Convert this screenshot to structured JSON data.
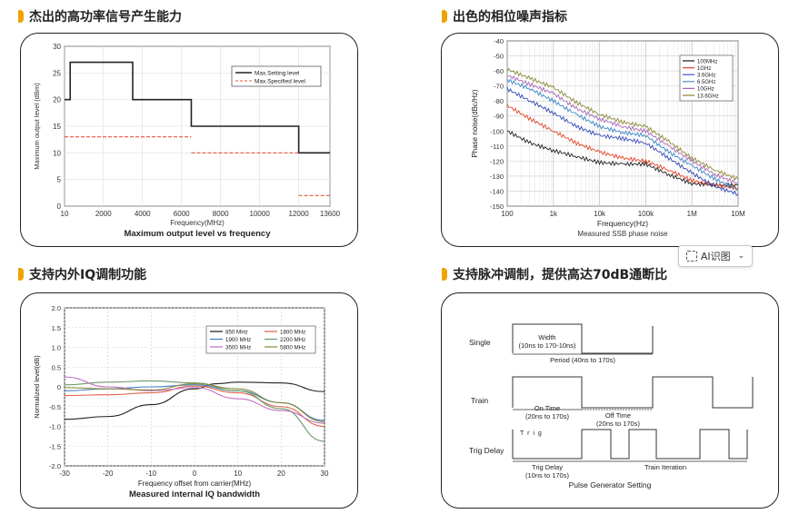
{
  "sections": [
    {
      "title": "杰出的高功率信号产生能力"
    },
    {
      "title": "出色的相位噪声指标"
    },
    {
      "title": "支持内外IQ调制功能"
    },
    {
      "title": "支持脉冲调制，提供高达70dB通断比"
    }
  ],
  "ai_button": {
    "label": "AI识图",
    "icon": "ai-scan-icon",
    "chevron": "chevron-down-icon"
  },
  "colors": {
    "accent": "#f0a300",
    "black_line": "#222222",
    "red_dashed": "#e8553a"
  },
  "chart_data": [
    {
      "type": "line",
      "title": "Maximum output level vs frequency",
      "xlabel": "Frequency(MHz)",
      "ylabel": "Maximum output level (dBm)",
      "xlim": [
        10,
        13600
      ],
      "ylim": [
        0,
        30
      ],
      "xticks": [
        "10",
        "2000",
        "4000",
        "6000",
        "8000",
        "10000",
        "12000",
        "13600"
      ],
      "yticks": [
        "0",
        "5",
        "10",
        "15",
        "20",
        "25",
        "30"
      ],
      "legend": {
        "position": "top-right",
        "entries": [
          "Max.Setting level",
          "Max.Specified level"
        ]
      },
      "series": [
        {
          "name": "Max.Setting level",
          "style": "solid",
          "color": "#222222",
          "x": [
            10,
            10,
            300,
            300,
            3500,
            3500,
            6500,
            6500,
            12000,
            12000,
            13600
          ],
          "y": [
            20,
            20,
            20,
            27,
            27,
            20,
            20,
            15,
            15,
            10,
            10
          ]
        },
        {
          "name": "Max.Specified level",
          "style": "dashed",
          "color": "#e8553a",
          "segments": [
            {
              "x": [
                10,
                6500
              ],
              "y": [
                13,
                13
              ]
            },
            {
              "x": [
                6500,
                12000
              ],
              "y": [
                10,
                10
              ]
            },
            {
              "x": [
                12000,
                13600
              ],
              "y": [
                2,
                2
              ]
            }
          ]
        }
      ]
    },
    {
      "type": "line",
      "title": "Measured SSB phase noise",
      "xlabel": "Frequency(Hz)",
      "ylabel": "Phase noise(dBc/Hz)",
      "xscale": "log",
      "xticks": [
        "100",
        "1k",
        "10k",
        "100k",
        "1M",
        "10M"
      ],
      "yticks": [
        "-40",
        "-50",
        "-60",
        "-70",
        "-80",
        "-90",
        "-100",
        "-110",
        "-120",
        "-130",
        "-140",
        "-150"
      ],
      "ylim": [
        -150,
        -40
      ],
      "legend": {
        "position": "top-right",
        "entries": [
          "100MHz",
          "1GHz",
          "3.6GHz",
          "6.5GHz",
          "10GHz",
          "13.6GHz"
        ]
      },
      "series": [
        {
          "name": "100MHz",
          "color": "#222222",
          "logx": [
            2,
            2.5,
            3,
            3.5,
            4,
            4.5,
            5,
            5.5,
            6,
            6.5,
            7
          ],
          "y": [
            -100,
            -108,
            -113,
            -117,
            -121,
            -122,
            -122,
            -129,
            -135,
            -136,
            -136
          ]
        },
        {
          "name": "1GHz",
          "color": "#e3442a",
          "logx": [
            2,
            2.5,
            3,
            3.5,
            4,
            4.5,
            5,
            5.5,
            6,
            6.5,
            7
          ],
          "y": [
            -83,
            -92,
            -100,
            -108,
            -114,
            -118,
            -120,
            -126,
            -133,
            -136,
            -138
          ]
        },
        {
          "name": "3.6GHz",
          "color": "#3349b8",
          "logx": [
            2,
            2.5,
            3,
            3.5,
            4,
            4.5,
            5,
            5.5,
            6,
            6.5,
            7
          ],
          "y": [
            -72,
            -80,
            -88,
            -97,
            -103,
            -105,
            -108,
            -118,
            -128,
            -137,
            -142
          ]
        },
        {
          "name": "6.5GHz",
          "color": "#3a86c8",
          "logx": [
            2,
            2.5,
            3,
            3.5,
            4,
            4.5,
            5,
            5.5,
            6,
            6.5,
            7
          ],
          "y": [
            -66,
            -72,
            -80,
            -89,
            -97,
            -101,
            -103,
            -114,
            -123,
            -132,
            -139
          ]
        },
        {
          "name": "10GHz",
          "color": "#a868b8",
          "logx": [
            2,
            2.5,
            3,
            3.5,
            4,
            4.5,
            5,
            5.5,
            6,
            6.5,
            7
          ],
          "y": [
            -63,
            -69,
            -75,
            -85,
            -92,
            -97,
            -100,
            -110,
            -120,
            -129,
            -135
          ]
        },
        {
          "name": "13.6GHz",
          "color": "#8f8a35",
          "logx": [
            2,
            2.5,
            3,
            3.5,
            4,
            4.5,
            5,
            5.5,
            6,
            6.5,
            7
          ],
          "y": [
            -59,
            -65,
            -71,
            -81,
            -89,
            -94,
            -97,
            -107,
            -118,
            -126,
            -132
          ]
        }
      ]
    },
    {
      "type": "line",
      "title": "Measured internal IQ bandwidth",
      "xlabel": "Frequency offset from carrier(MHz)",
      "ylabel": "Normalized level(dB)",
      "xlim": [
        -30,
        30
      ],
      "ylim": [
        -2,
        2
      ],
      "xticks": [
        "-30",
        "-20",
        "-10",
        "0",
        "10",
        "20",
        "30"
      ],
      "yticks": [
        "2.0",
        "1.5",
        "1.0",
        "0.5",
        "0",
        "-0.5",
        "-1.0",
        "-1.5",
        "-2.0"
      ],
      "legend": {
        "position": "top-right",
        "entries": [
          "850 MHz",
          "1800 MHz",
          "1900 MHz",
          "2200 MHz",
          "3500 MHz",
          "5800 MHz"
        ]
      },
      "series": [
        {
          "name": "850 MHz",
          "color": "#222222",
          "x": [
            -30,
            -20,
            -10,
            0,
            5,
            10,
            20,
            30
          ],
          "y": [
            -0.82,
            -0.75,
            -0.45,
            -0.05,
            0.08,
            0.12,
            0.1,
            -0.12
          ]
        },
        {
          "name": "1800 MHz",
          "color": "#e0604a",
          "x": [
            -30,
            -20,
            -10,
            0,
            10,
            20,
            30
          ],
          "y": [
            -0.22,
            -0.2,
            -0.15,
            0.02,
            -0.15,
            -0.5,
            -1.0
          ]
        },
        {
          "name": "1900 MHz",
          "color": "#4080c0",
          "x": [
            -30,
            -20,
            -10,
            0,
            10,
            20,
            30
          ],
          "y": [
            -0.1,
            -0.05,
            0.0,
            0.05,
            -0.1,
            -0.4,
            -0.85
          ]
        },
        {
          "name": "2200 MHz",
          "color": "#6a9a6a",
          "x": [
            -30,
            -20,
            -10,
            0,
            10,
            20,
            30
          ],
          "y": [
            0.05,
            0.12,
            0.15,
            0.1,
            -0.1,
            -0.55,
            -1.38
          ]
        },
        {
          "name": "3500 MHz",
          "color": "#c070c0",
          "x": [
            -30,
            -20,
            -10,
            0,
            10,
            20,
            30
          ],
          "y": [
            0.25,
            0.0,
            -0.1,
            -0.02,
            -0.3,
            -0.6,
            -0.92
          ]
        },
        {
          "name": "5800 MHz",
          "color": "#8a8a3a",
          "x": [
            -30,
            -20,
            -10,
            0,
            10,
            20,
            30
          ],
          "y": [
            -0.02,
            -0.05,
            -0.08,
            0.08,
            -0.05,
            -0.4,
            -0.88
          ]
        }
      ]
    },
    {
      "type": "diagram",
      "title": "Pulse Generator Setting",
      "rows": [
        {
          "label": "Single",
          "annotations": [
            "Width",
            "(10ns to 170-10ns)",
            "Period (40ns to 170s)"
          ]
        },
        {
          "label": "Train",
          "annotations": [
            "On Time",
            "(20ns to 170s)",
            "Off Time",
            "(20ns to 170s)"
          ]
        },
        {
          "label": "Trig Delay",
          "annotations": [
            "Trig Delay",
            "(10ns to 170s)",
            "Train Iteration",
            "T r i g"
          ]
        }
      ]
    }
  ]
}
